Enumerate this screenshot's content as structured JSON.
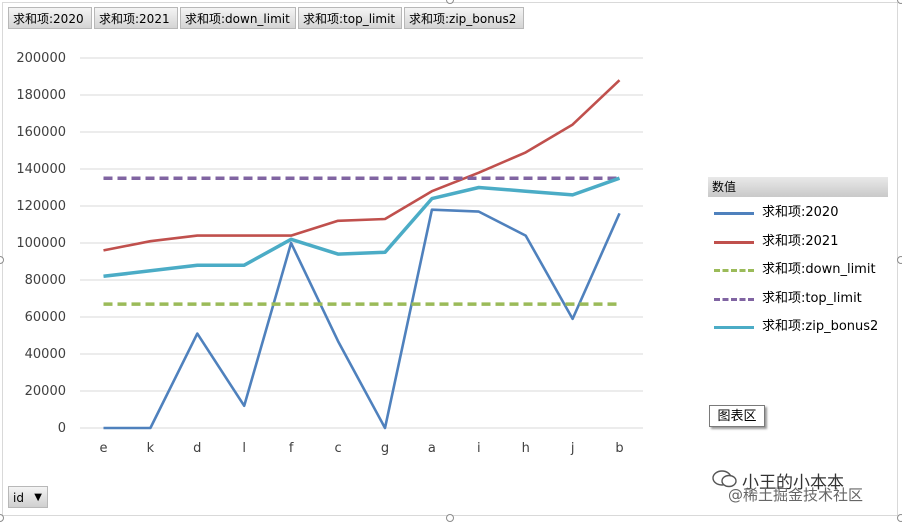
{
  "field_buttons": [
    "求和项:2020",
    "求和项:2021",
    "求和项:down_limit",
    "求和项:top_limit",
    "求和项:zip_bonus2"
  ],
  "legend": {
    "title": "数值",
    "items": [
      {
        "label": "求和项:2020",
        "color": "#4f81bd",
        "style": "solid"
      },
      {
        "label": "求和项:2021",
        "color": "#c0504d",
        "style": "solid"
      },
      {
        "label": "求和项:down_limit",
        "color": "#9bbb59",
        "style": "dashed"
      },
      {
        "label": "求和项:top_limit",
        "color": "#8064a2",
        "style": "dashed"
      },
      {
        "label": "求和项:zip_bonus2",
        "color": "#4bacc6",
        "style": "solid"
      }
    ]
  },
  "chart_area_button": "图表区",
  "axis_field_button": "id",
  "watermark": {
    "line1": "小王的小本本",
    "line2": "@稀土掘金技术社区"
  },
  "chart_data": {
    "type": "line",
    "categories": [
      "e",
      "k",
      "d",
      "l",
      "f",
      "c",
      "g",
      "a",
      "i",
      "h",
      "j",
      "b"
    ],
    "ylim": [
      0,
      200000
    ],
    "yticks": [
      "0",
      "20000",
      "40000",
      "60000",
      "80000",
      "100000",
      "120000",
      "140000",
      "160000",
      "180000",
      "200000"
    ],
    "grid": true,
    "legend_position": "right",
    "series": [
      {
        "name": "求和项:2020",
        "values": [
          0,
          0,
          51000,
          12000,
          100000,
          47000,
          0,
          118000,
          117000,
          104000,
          59000,
          116000
        ]
      },
      {
        "name": "求和项:2021",
        "values": [
          96000,
          101000,
          104000,
          104000,
          104000,
          112000,
          113000,
          128000,
          138000,
          149000,
          164000,
          188000
        ]
      },
      {
        "name": "求和项:down_limit",
        "values": [
          67000,
          67000,
          67000,
          67000,
          67000,
          67000,
          67000,
          67000,
          67000,
          67000,
          67000,
          67000
        ]
      },
      {
        "name": "求和项:top_limit",
        "values": [
          135000,
          135000,
          135000,
          135000,
          135000,
          135000,
          135000,
          135000,
          135000,
          135000,
          135000,
          135000
        ]
      },
      {
        "name": "求和项:zip_bonus2",
        "values": [
          82000,
          85000,
          88000,
          88000,
          102000,
          94000,
          95000,
          124000,
          130000,
          128000,
          126000,
          135000
        ]
      }
    ]
  }
}
